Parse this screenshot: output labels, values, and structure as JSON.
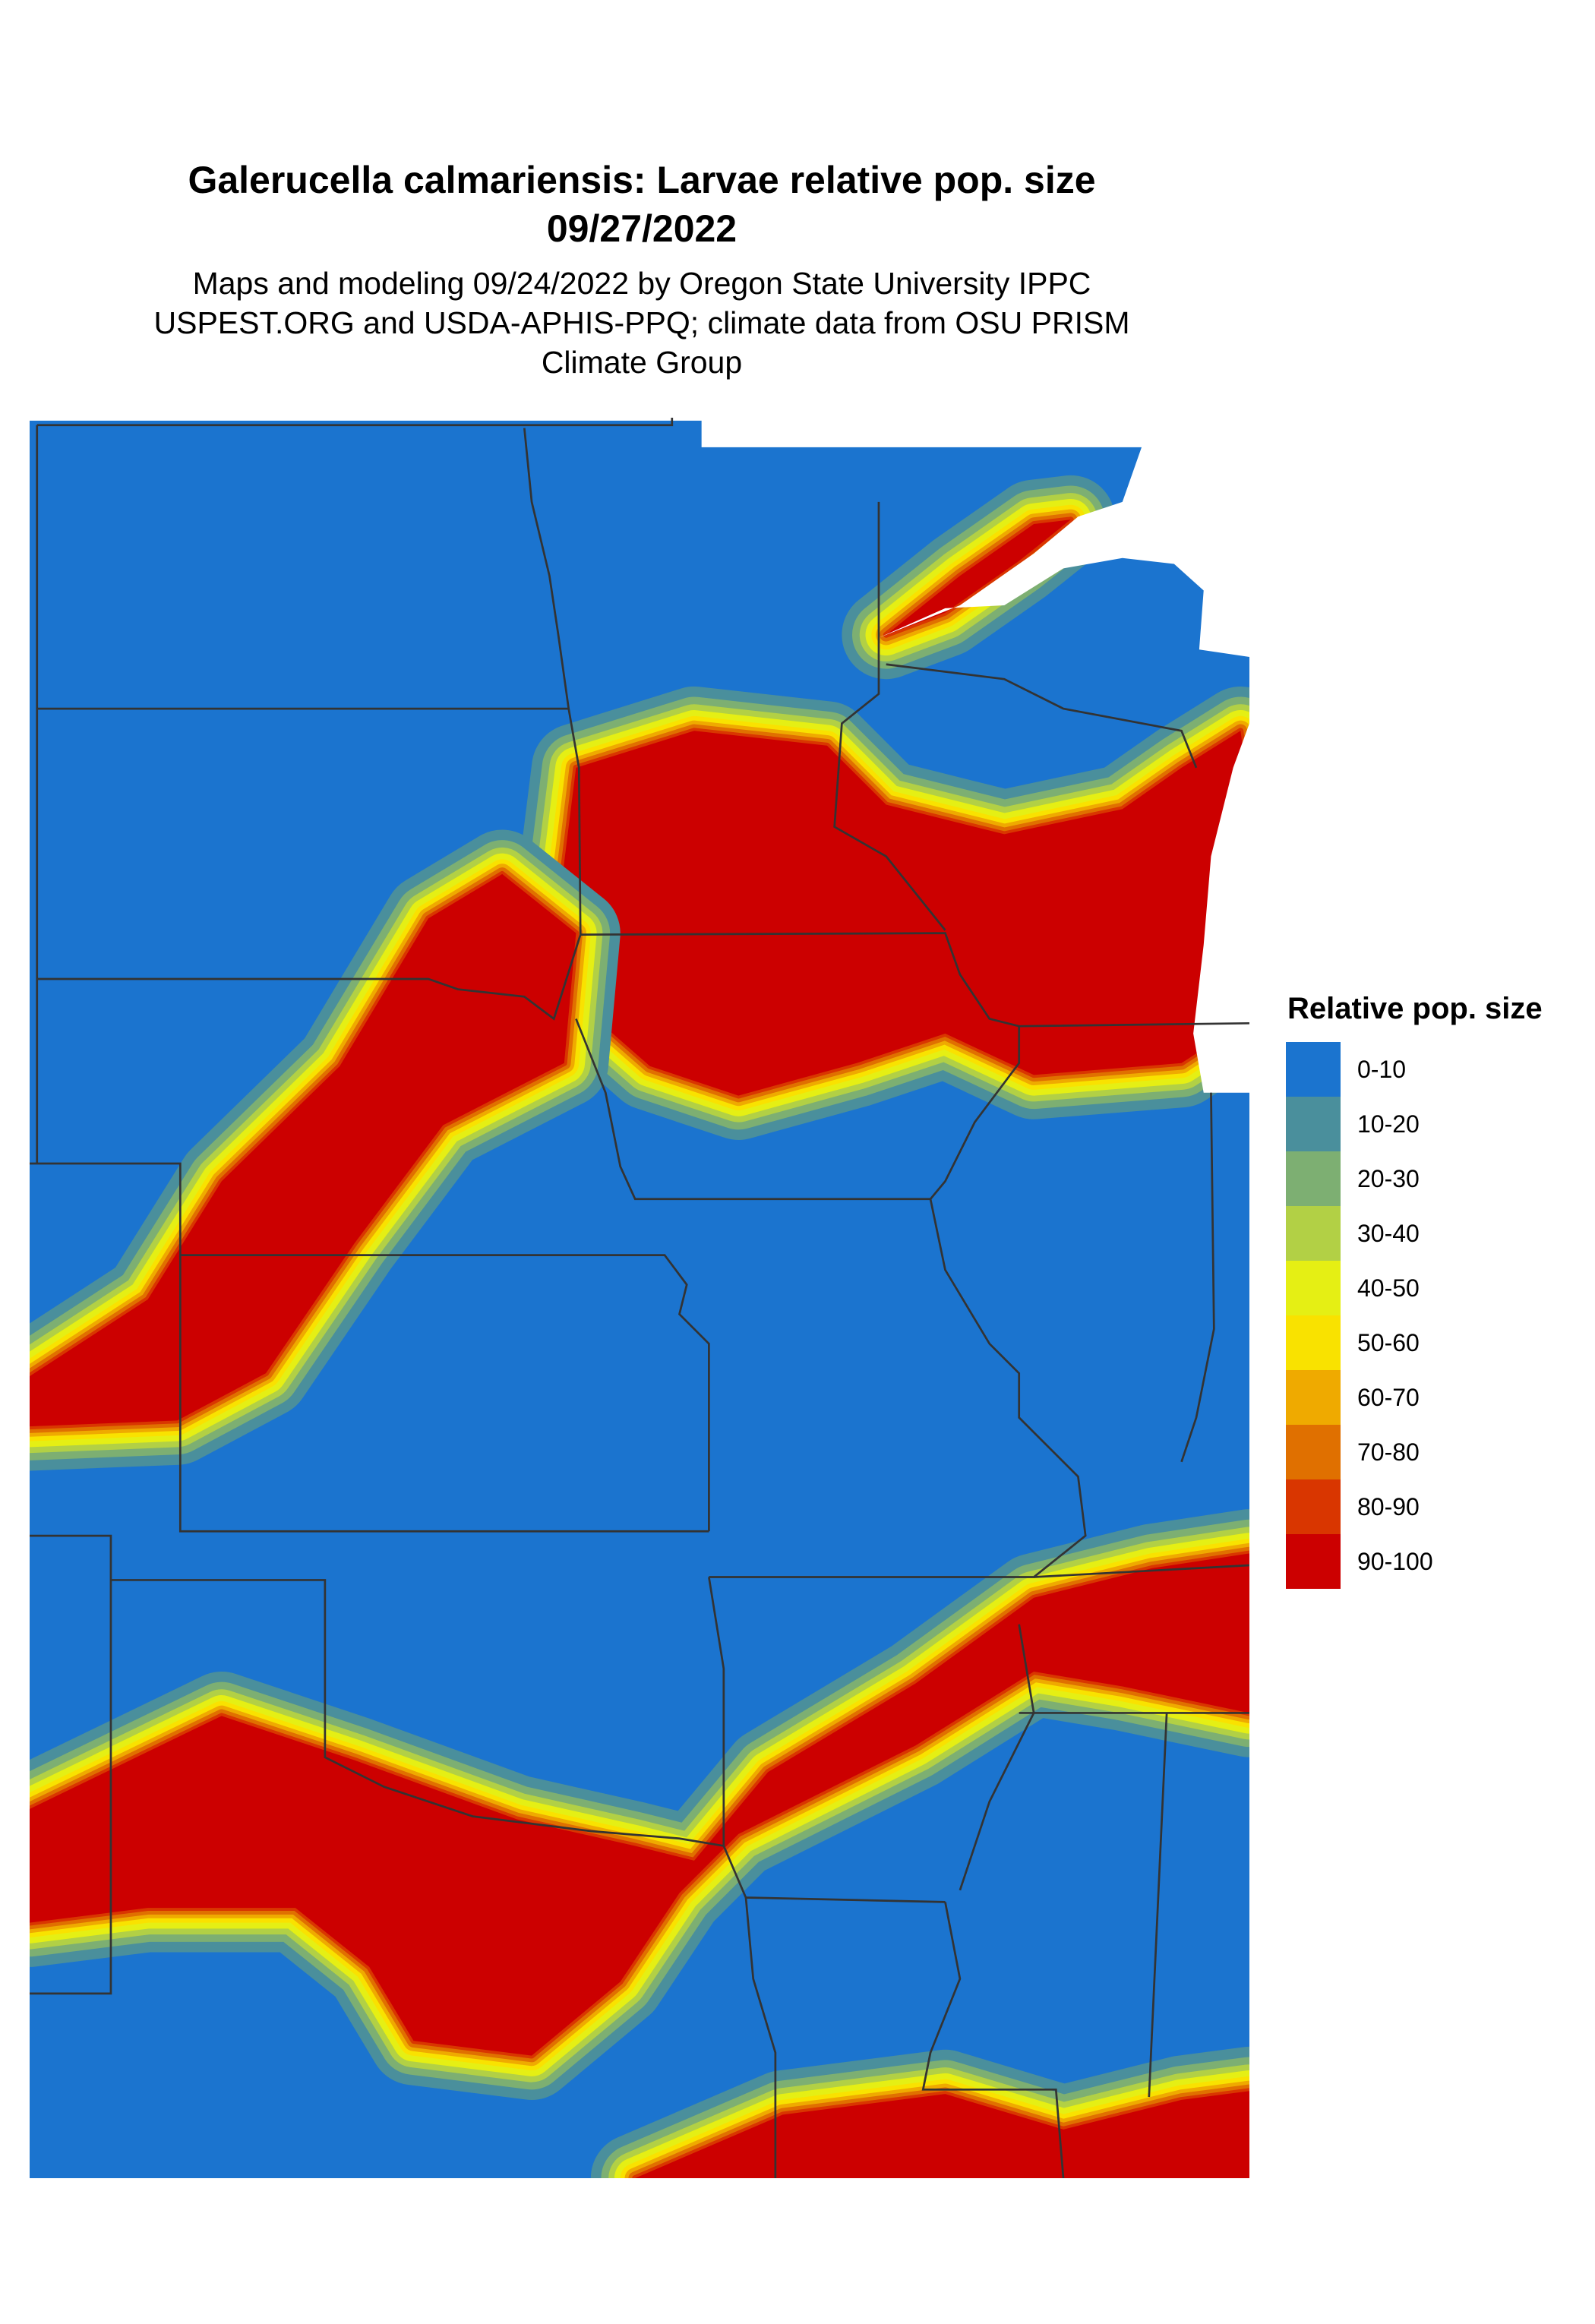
{
  "header": {
    "title": "Galerucella calmariensis: Larvae relative pop. size",
    "date": "09/27/2022",
    "subtitle_lines": [
      "Maps and modeling 09/24/2022 by Oregon State University IPPC",
      "USPEST.ORG and USDA-APHIS-PPQ; climate data from OSU PRISM",
      "Climate Group"
    ]
  },
  "legend": {
    "title": "Relative pop. size",
    "items": [
      {
        "label": "0-10",
        "color": "#1b74cf"
      },
      {
        "label": "10-20",
        "color": "#4a8f9c"
      },
      {
        "label": "20-30",
        "color": "#7daf72"
      },
      {
        "label": "30-40",
        "color": "#b2d045"
      },
      {
        "label": "40-50",
        "color": "#e5ef14"
      },
      {
        "label": "50-60",
        "color": "#f9e200"
      },
      {
        "label": "60-70",
        "color": "#efaa00"
      },
      {
        "label": "70-80",
        "color": "#e07000"
      },
      {
        "label": "80-90",
        "color": "#d93600"
      },
      {
        "label": "90-100",
        "color": "#cc0000"
      }
    ]
  },
  "map": {
    "background_color": "#1b74cf",
    "border_color": "#333333"
  }
}
